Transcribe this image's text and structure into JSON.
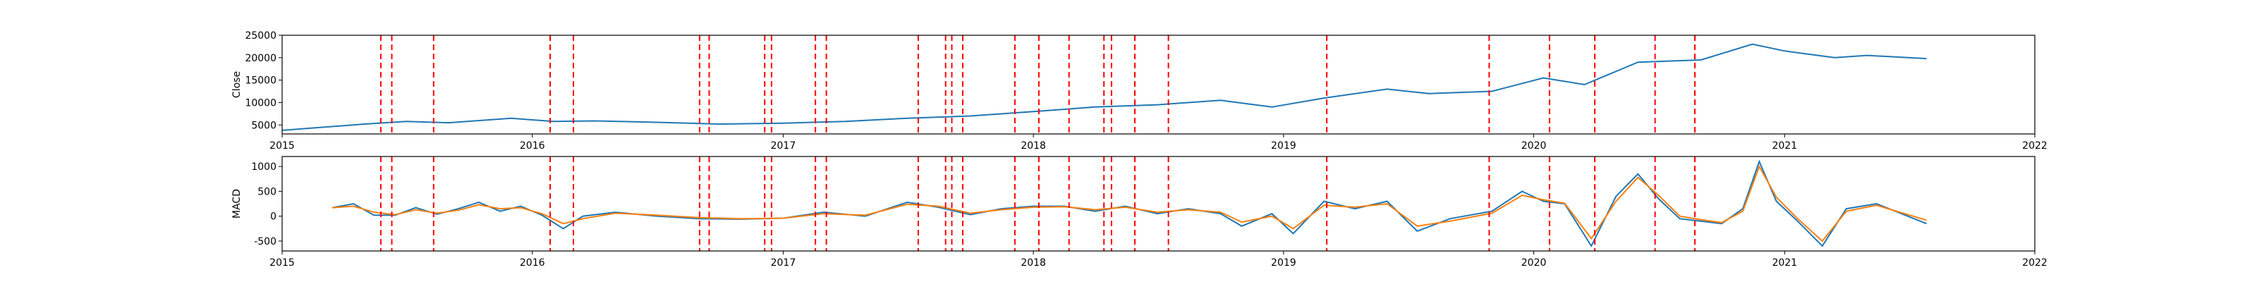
{
  "chart_data": [
    {
      "type": "line",
      "ylabel": "Close",
      "xlabel": "",
      "xlim": [
        "2015-01-01",
        "2022-01-01"
      ],
      "ylim": [
        3000,
        25000
      ],
      "x_ticks": [
        "2015",
        "2016",
        "2017",
        "2018",
        "2019",
        "2020",
        "2021",
        "2022"
      ],
      "y_ticks": [
        5000,
        10000,
        15000,
        20000,
        25000
      ],
      "grid": false,
      "series": [
        {
          "color": "#1f77b4",
          "x": [
            "2015-01-01",
            "2015-03-01",
            "2015-05-01",
            "2015-07-01",
            "2015-09-01",
            "2015-12-01",
            "2016-02-01",
            "2016-04-01",
            "2016-07-01",
            "2016-10-01",
            "2017-01-01",
            "2017-04-01",
            "2017-07-01",
            "2017-10-01",
            "2018-01-01",
            "2018-04-01",
            "2018-07-01",
            "2018-10-01",
            "2018-12-15",
            "2019-03-01",
            "2019-06-01",
            "2019-08-01",
            "2019-11-01",
            "2020-01-15",
            "2020-03-15",
            "2020-06-01",
            "2020-09-01",
            "2020-11-15",
            "2021-01-01",
            "2021-03-15",
            "2021-05-01",
            "2021-07-27"
          ],
          "values": [
            3800,
            4500,
            5200,
            5800,
            5500,
            6500,
            5800,
            5900,
            5600,
            5200,
            5400,
            5800,
            6500,
            7000,
            8000,
            9000,
            9500,
            10500,
            9000,
            11000,
            13000,
            12000,
            12500,
            15500,
            14000,
            19000,
            19500,
            23000,
            21500,
            20000,
            20500,
            19800
          ]
        }
      ],
      "event_lines": {
        "color": "#ff0000",
        "style": "dashed",
        "dates": [
          "2015-05-25",
          "2015-06-10",
          "2015-08-10",
          "2016-01-27",
          "2016-03-01",
          "2016-09-01",
          "2016-09-15",
          "2016-12-05",
          "2016-12-15",
          "2017-02-17",
          "2017-03-05",
          "2017-07-17",
          "2017-08-26",
          "2017-09-04",
          "2017-09-20",
          "2017-12-05",
          "2018-01-09",
          "2018-02-22",
          "2018-04-14",
          "2018-04-25",
          "2018-05-29",
          "2018-07-17",
          "2019-03-05",
          "2019-10-28",
          "2020-01-24",
          "2020-03-30",
          "2020-06-26",
          "2020-08-23"
        ]
      }
    },
    {
      "type": "line",
      "ylabel": "MACD",
      "xlabel": "",
      "xlim": [
        "2015-01-01",
        "2022-01-01"
      ],
      "ylim": [
        -700,
        1200
      ],
      "x_ticks": [
        "2015",
        "2016",
        "2017",
        "2018",
        "2019",
        "2020",
        "2021",
        "2022"
      ],
      "y_ticks": [
        -500,
        0,
        500,
        1000
      ],
      "grid": false,
      "series": [
        {
          "color": "#1f77b4",
          "x": [
            "2015-03-15",
            "2015-04-15",
            "2015-05-15",
            "2015-06-15",
            "2015-07-15",
            "2015-08-15",
            "2015-09-15",
            "2015-10-15",
            "2015-11-15",
            "2015-12-15",
            "2016-01-15",
            "2016-02-15",
            "2016-03-15",
            "2016-05-01",
            "2016-07-01",
            "2016-09-01",
            "2016-11-01",
            "2017-01-01",
            "2017-03-01",
            "2017-05-01",
            "2017-07-01",
            "2017-08-15",
            "2017-10-01",
            "2017-11-15",
            "2018-01-01",
            "2018-02-15",
            "2018-04-01",
            "2018-05-15",
            "2018-07-01",
            "2018-08-15",
            "2018-10-01",
            "2018-11-01",
            "2018-12-15",
            "2019-01-15",
            "2019-03-01",
            "2019-04-15",
            "2019-06-01",
            "2019-07-15",
            "2019-09-01",
            "2019-11-01",
            "2019-12-15",
            "2020-01-15",
            "2020-02-15",
            "2020-03-25",
            "2020-04-30",
            "2020-06-01",
            "2020-07-01",
            "2020-08-01",
            "2020-09-01",
            "2020-10-01",
            "2020-11-01",
            "2020-11-25",
            "2020-12-20",
            "2021-01-20",
            "2021-02-25",
            "2021-04-01",
            "2021-05-15",
            "2021-07-27"
          ],
          "values": [
            170,
            250,
            20,
            20,
            170,
            40,
            150,
            280,
            100,
            200,
            20,
            -250,
            0,
            80,
            0,
            -50,
            -60,
            -40,
            80,
            0,
            280,
            180,
            30,
            150,
            200,
            200,
            100,
            200,
            50,
            150,
            50,
            -200,
            50,
            -350,
            300,
            150,
            300,
            -300,
            -50,
            100,
            500,
            300,
            250,
            -600,
            400,
            850,
            350,
            -50,
            -100,
            -150,
            150,
            1100,
            300,
            -100,
            -600,
            150,
            250,
            -150
          ]
        },
        {
          "color": "#ff7f0e",
          "x": [
            "2015-03-15",
            "2015-04-15",
            "2015-05-15",
            "2015-06-15",
            "2015-07-15",
            "2015-08-15",
            "2015-09-15",
            "2015-10-15",
            "2015-11-15",
            "2015-12-15",
            "2016-01-15",
            "2016-02-15",
            "2016-03-15",
            "2016-05-01",
            "2016-07-01",
            "2016-09-01",
            "2016-11-01",
            "2017-01-01",
            "2017-03-01",
            "2017-05-01",
            "2017-07-01",
            "2017-08-15",
            "2017-10-01",
            "2017-11-15",
            "2018-01-01",
            "2018-02-15",
            "2018-04-01",
            "2018-05-15",
            "2018-07-01",
            "2018-08-15",
            "2018-10-01",
            "2018-11-01",
            "2018-12-15",
            "2019-01-15",
            "2019-03-01",
            "2019-04-15",
            "2019-06-01",
            "2019-07-15",
            "2019-09-01",
            "2019-11-01",
            "2019-12-15",
            "2020-01-15",
            "2020-02-15",
            "2020-03-25",
            "2020-04-30",
            "2020-06-01",
            "2020-07-01",
            "2020-08-01",
            "2020-09-01",
            "2020-10-01",
            "2020-11-01",
            "2020-11-25",
            "2020-12-20",
            "2021-01-20",
            "2021-02-25",
            "2021-04-01",
            "2021-05-15",
            "2021-07-27"
          ],
          "values": [
            170,
            200,
            80,
            30,
            130,
            60,
            120,
            230,
            150,
            170,
            50,
            -150,
            -50,
            60,
            20,
            -30,
            -50,
            -40,
            50,
            20,
            240,
            200,
            60,
            130,
            180,
            190,
            130,
            180,
            80,
            130,
            80,
            -120,
            0,
            -250,
            220,
            180,
            250,
            -200,
            -100,
            60,
            420,
            330,
            260,
            -450,
            300,
            780,
            420,
            0,
            -70,
            -130,
            100,
            1000,
            380,
            -50,
            -500,
            100,
            220,
            -80
          ]
        }
      ],
      "event_lines": {
        "color": "#ff0000",
        "style": "dashed",
        "dates": [
          "2015-05-25",
          "2015-06-10",
          "2015-08-10",
          "2016-01-27",
          "2016-03-01",
          "2016-09-01",
          "2016-09-15",
          "2016-12-05",
          "2016-12-15",
          "2017-02-17",
          "2017-03-05",
          "2017-07-17",
          "2017-08-26",
          "2017-09-04",
          "2017-09-20",
          "2017-12-05",
          "2018-01-09",
          "2018-02-22",
          "2018-04-14",
          "2018-04-25",
          "2018-05-29",
          "2018-07-17",
          "2019-03-05",
          "2019-10-28",
          "2020-01-24",
          "2020-03-30",
          "2020-06-26",
          "2020-08-23"
        ]
      }
    }
  ]
}
